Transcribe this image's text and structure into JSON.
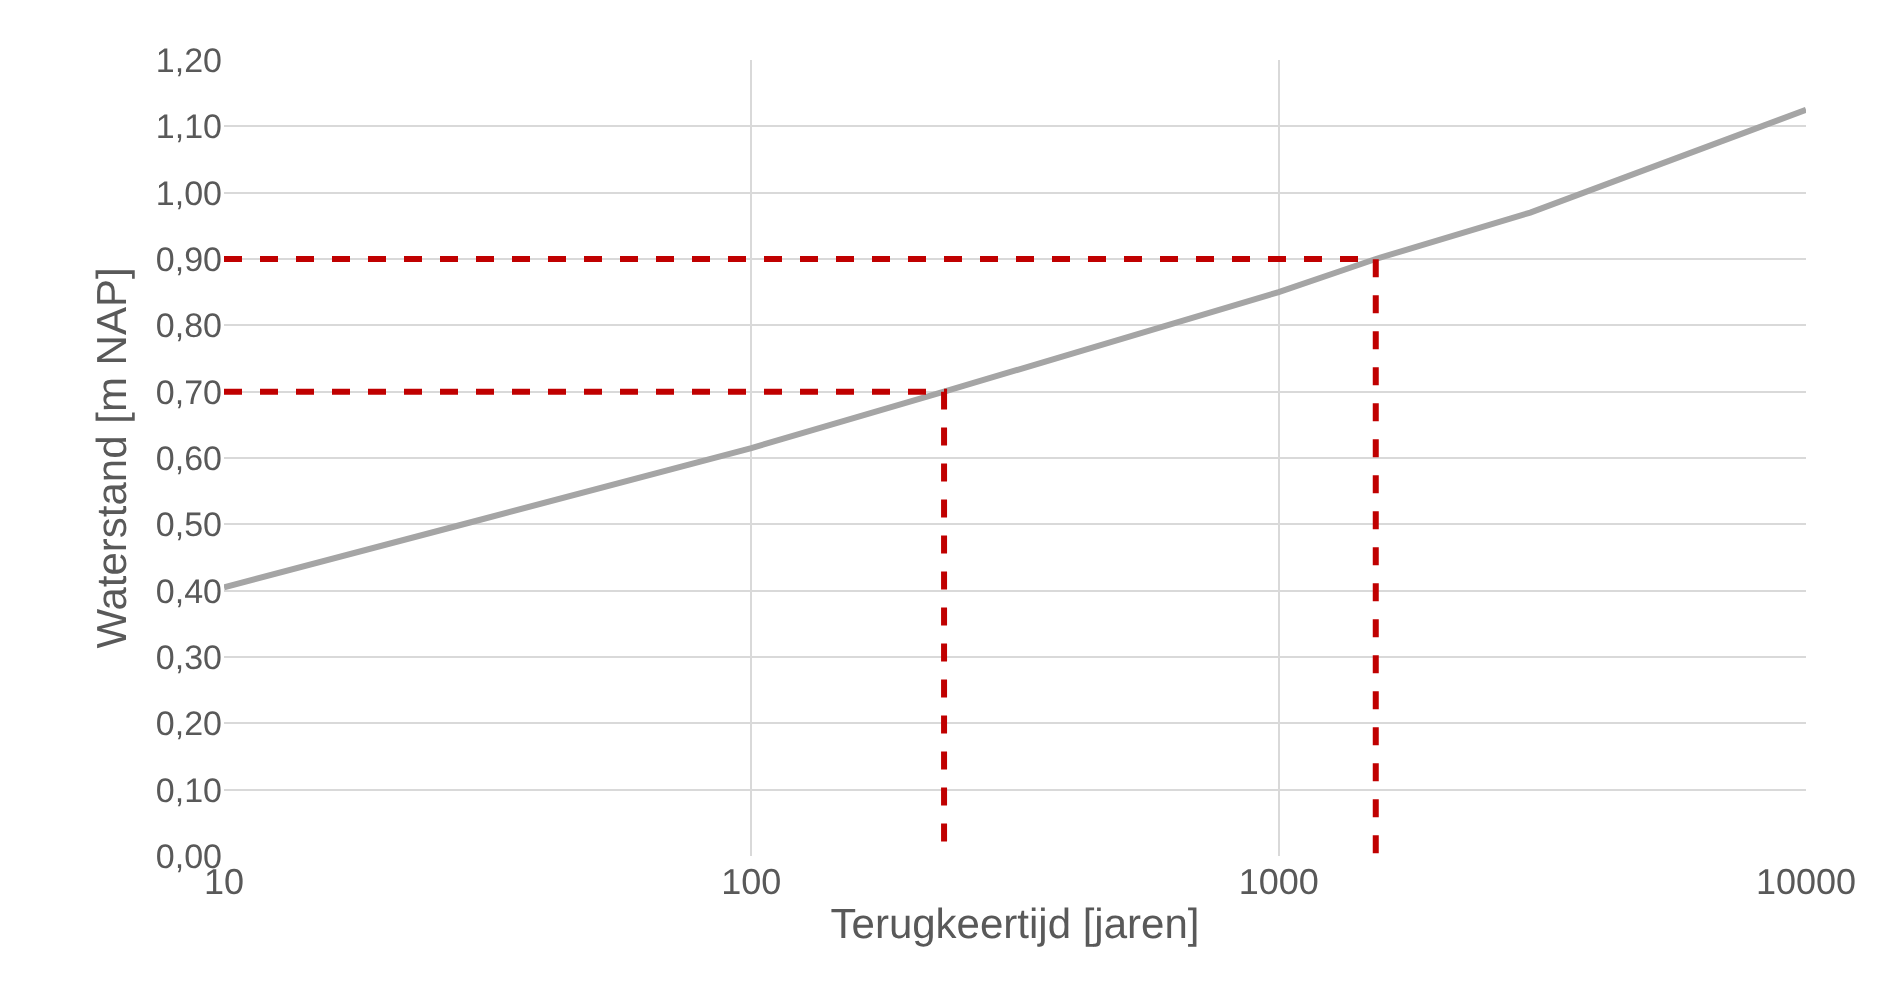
{
  "chart_data": {
    "type": "line",
    "xlabel": "Terugkeertijd [jaren]",
    "ylabel": "Waterstand [m NAP]",
    "log": "x",
    "grid": true,
    "marker": "none",
    "xlim": [
      10,
      10000
    ],
    "xticks": [
      10,
      100,
      1000,
      10000
    ],
    "ylim": [
      0,
      1.2
    ],
    "yticks": [
      {
        "value": 0,
        "label": "0,00"
      },
      {
        "value": 0.1,
        "label": "0,10"
      },
      {
        "value": 0.2,
        "label": "0,20"
      },
      {
        "value": 0.3,
        "label": "0,30"
      },
      {
        "value": 0.4,
        "label": "0,40"
      },
      {
        "value": 0.5,
        "label": "0,50"
      },
      {
        "value": 0.6,
        "label": "0,60"
      },
      {
        "value": 0.7,
        "label": "0,70"
      },
      {
        "value": 0.8,
        "label": "0,80"
      },
      {
        "value": 0.9,
        "label": "0,90"
      },
      {
        "value": 1,
        "label": "1,00"
      },
      {
        "value": 1.1,
        "label": "1,10"
      },
      {
        "value": 1.2,
        "label": "1,20"
      }
    ],
    "series": [
      {
        "color": "#a5a5a5",
        "line_style": "solid",
        "x": [
          10,
          30,
          100,
          232,
          1000,
          1528,
          3000,
          10000
        ],
        "values": [
          0.405,
          0.505,
          0.615,
          0.7,
          0.85,
          0.9,
          0.97,
          1.125
        ]
      },
      {
        "color": "#c00000",
        "line_style": "dashed",
        "x": [
          10,
          232,
          232
        ],
        "values": [
          0.7,
          0.7,
          0
        ]
      },
      {
        "color": "#c00000",
        "line_style": "dashed",
        "x": [
          10,
          1528,
          1528
        ],
        "values": [
          0.9,
          0.9,
          0
        ]
      }
    ]
  }
}
